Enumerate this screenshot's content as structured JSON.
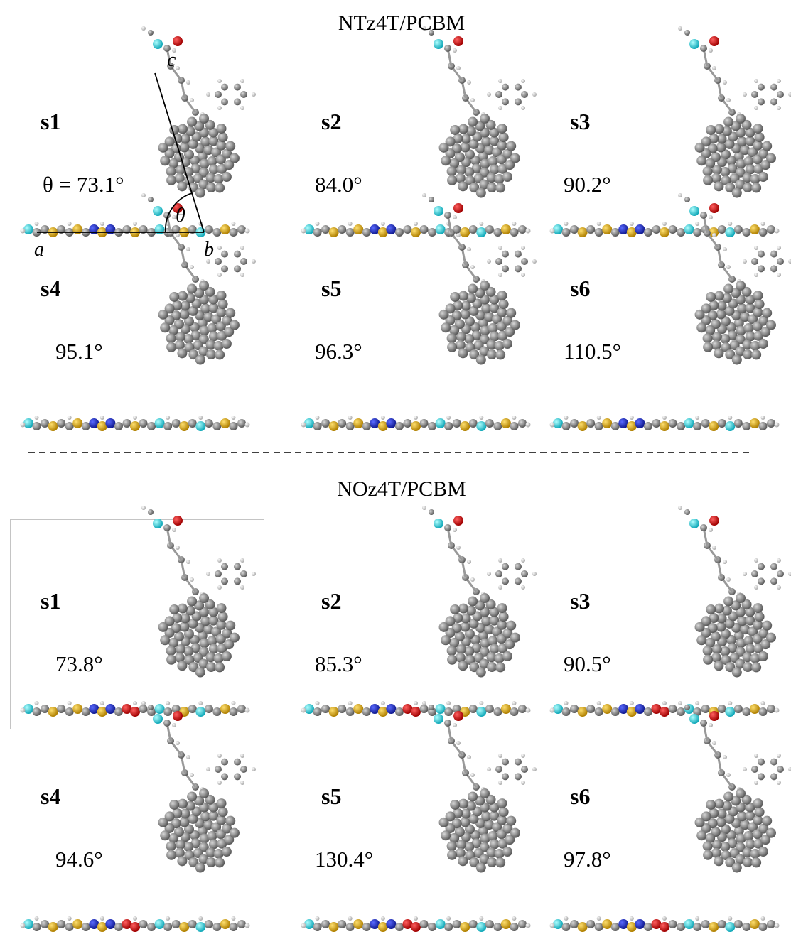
{
  "sections": [
    {
      "title": "NTz4T/PCBM",
      "panels": [
        {
          "label": "s1",
          "angle": "θ = 73.1°"
        },
        {
          "label": "s2",
          "angle": "84.0°"
        },
        {
          "label": "s3",
          "angle": "90.2°"
        },
        {
          "label": "s4",
          "angle": "95.1°"
        },
        {
          "label": "s5",
          "angle": "96.3°"
        },
        {
          "label": "s6",
          "angle": "110.5°"
        }
      ]
    },
    {
      "title": "NOz4T/PCBM",
      "panels": [
        {
          "label": "s1",
          "angle": "73.8°"
        },
        {
          "label": "s2",
          "angle": "85.3°"
        },
        {
          "label": "s3",
          "angle": "90.5°"
        },
        {
          "label": "s4",
          "angle": "94.6°"
        },
        {
          "label": "s5",
          "angle": "130.4°"
        },
        {
          "label": "s6",
          "angle": "97.8°"
        }
      ]
    }
  ],
  "annotations": {
    "a": "a",
    "b": "b",
    "c": "c",
    "theta": "θ"
  }
}
